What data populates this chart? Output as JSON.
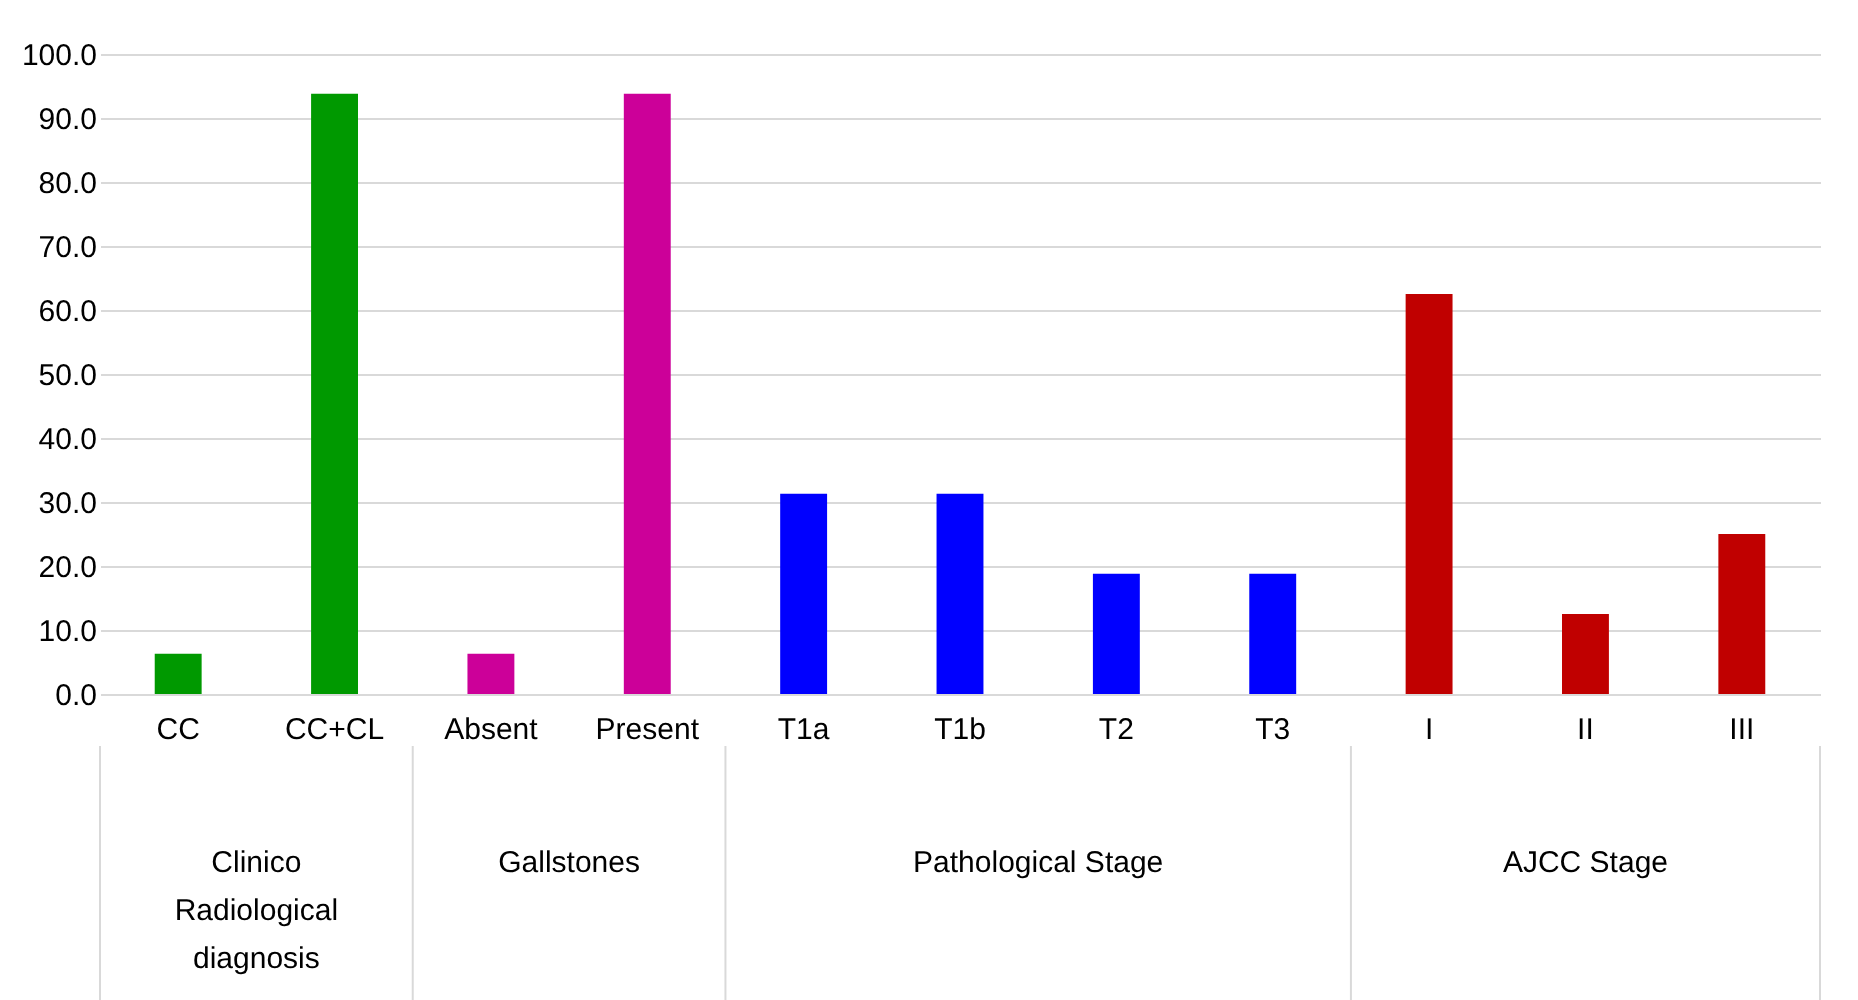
{
  "chart_data": {
    "type": "bar",
    "categories": [
      "CC",
      "CC+CL",
      "Absent",
      "Present",
      "T1a",
      "T1b",
      "T2",
      "T3",
      "I",
      "II",
      "III"
    ],
    "values": [
      6.3,
      93.8,
      6.3,
      93.8,
      31.3,
      31.3,
      18.8,
      18.8,
      62.5,
      12.5,
      25.0
    ],
    "colors": [
      "#009900",
      "#009900",
      "#cc0099",
      "#cc0099",
      "#0000ff",
      "#0000ff",
      "#0000ff",
      "#0000ff",
      "#c00000",
      "#c00000",
      "#c00000"
    ],
    "ylim": [
      0,
      100
    ],
    "yticks": [
      {
        "value": 0,
        "label": "0.0"
      },
      {
        "value": 10,
        "label": "10.0"
      },
      {
        "value": 20,
        "label": "20.0"
      },
      {
        "value": 30,
        "label": "30.0"
      },
      {
        "value": 40,
        "label": "40.0"
      },
      {
        "value": 50,
        "label": "50.0"
      },
      {
        "value": 60,
        "label": "60.0"
      },
      {
        "value": 70,
        "label": "70.0"
      },
      {
        "value": 80,
        "label": "80.0"
      },
      {
        "value": 90,
        "label": "90.0"
      },
      {
        "value": 100,
        "label": "100.0"
      }
    ],
    "annotations": [
      "Clinico Radiological diagnosis",
      "Gallstones",
      "Pathological Stage",
      "AJCC Stage"
    ],
    "grid": "y",
    "legend": false
  }
}
